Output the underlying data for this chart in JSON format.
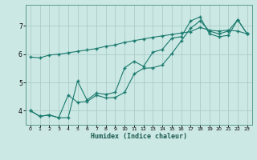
{
  "title": "",
  "xlabel": "Humidex (Indice chaleur)",
  "ylabel": "",
  "background_color": "#cce8e4",
  "grid_color": "#aaccc8",
  "line_color": "#1a7a6e",
  "xlim": [
    -0.5,
    23.5
  ],
  "ylim": [
    3.5,
    7.75
  ],
  "xticks": [
    0,
    1,
    2,
    3,
    4,
    5,
    6,
    7,
    8,
    9,
    10,
    11,
    12,
    13,
    14,
    15,
    16,
    17,
    18,
    19,
    20,
    21,
    22,
    23
  ],
  "yticks": [
    4,
    5,
    6,
    7
  ],
  "line1_x": [
    0,
    1,
    2,
    3,
    4,
    5,
    6,
    7,
    8,
    9,
    10,
    11,
    12,
    13,
    14,
    15,
    16,
    17,
    18,
    19,
    20,
    21,
    22,
    23
  ],
  "line1_y": [
    5.9,
    5.87,
    5.97,
    6.0,
    6.05,
    6.1,
    6.15,
    6.2,
    6.28,
    6.33,
    6.42,
    6.48,
    6.54,
    6.6,
    6.65,
    6.7,
    6.75,
    6.8,
    6.95,
    6.85,
    6.82,
    6.85,
    6.82,
    6.72
  ],
  "line2_x": [
    0,
    1,
    2,
    3,
    4,
    5,
    6,
    7,
    8,
    9,
    10,
    11,
    12,
    13,
    14,
    15,
    16,
    17,
    18,
    19,
    20,
    21,
    22,
    23
  ],
  "line2_y": [
    4.0,
    3.8,
    3.85,
    3.75,
    4.55,
    4.3,
    4.32,
    4.55,
    4.45,
    4.47,
    4.65,
    5.3,
    5.5,
    5.52,
    5.62,
    6.02,
    6.47,
    6.92,
    7.18,
    6.82,
    6.72,
    6.82,
    7.22,
    6.72
  ],
  "line3_x": [
    0,
    1,
    2,
    3,
    4,
    5,
    6,
    7,
    8,
    9,
    10,
    11,
    12,
    13,
    14,
    15,
    16,
    17,
    18,
    19,
    20,
    21,
    22,
    23
  ],
  "line3_y": [
    4.0,
    3.8,
    3.85,
    3.75,
    3.75,
    5.05,
    4.38,
    4.62,
    4.58,
    4.65,
    5.52,
    5.75,
    5.57,
    6.07,
    6.17,
    6.57,
    6.62,
    7.18,
    7.32,
    6.72,
    6.62,
    6.67,
    7.22,
    6.72
  ]
}
